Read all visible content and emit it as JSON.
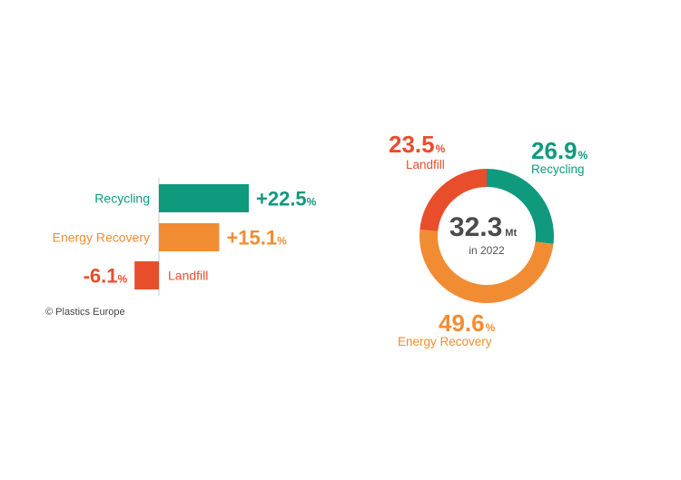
{
  "colors": {
    "recycling": "#0f9a7e",
    "energy_recovery": "#f28c33",
    "landfill": "#e84e2c",
    "axis": "#cccccc",
    "center_text": "#4a4a4a"
  },
  "chart_data": [
    {
      "type": "bar",
      "orientation": "horizontal",
      "categories": [
        "Recycling",
        "Energy Recovery",
        "Landfill"
      ],
      "values": [
        22.5,
        15.1,
        -6.1
      ],
      "value_labels": [
        "+22.5",
        "+15.1",
        "-6.1"
      ],
      "unit": "%",
      "xlim": [
        -8,
        28
      ]
    },
    {
      "type": "pie",
      "style": "donut",
      "categories": [
        "Recycling",
        "Energy Recovery",
        "Landfill"
      ],
      "values": [
        26.9,
        49.6,
        23.5
      ],
      "value_labels": [
        "26.9",
        "49.6",
        "23.5"
      ],
      "unit": "%",
      "center": {
        "value": "32.3",
        "unit": "Mt",
        "sublabel": "in 2022"
      }
    }
  ],
  "footer": {
    "copyright": "© Plastics Europe"
  }
}
